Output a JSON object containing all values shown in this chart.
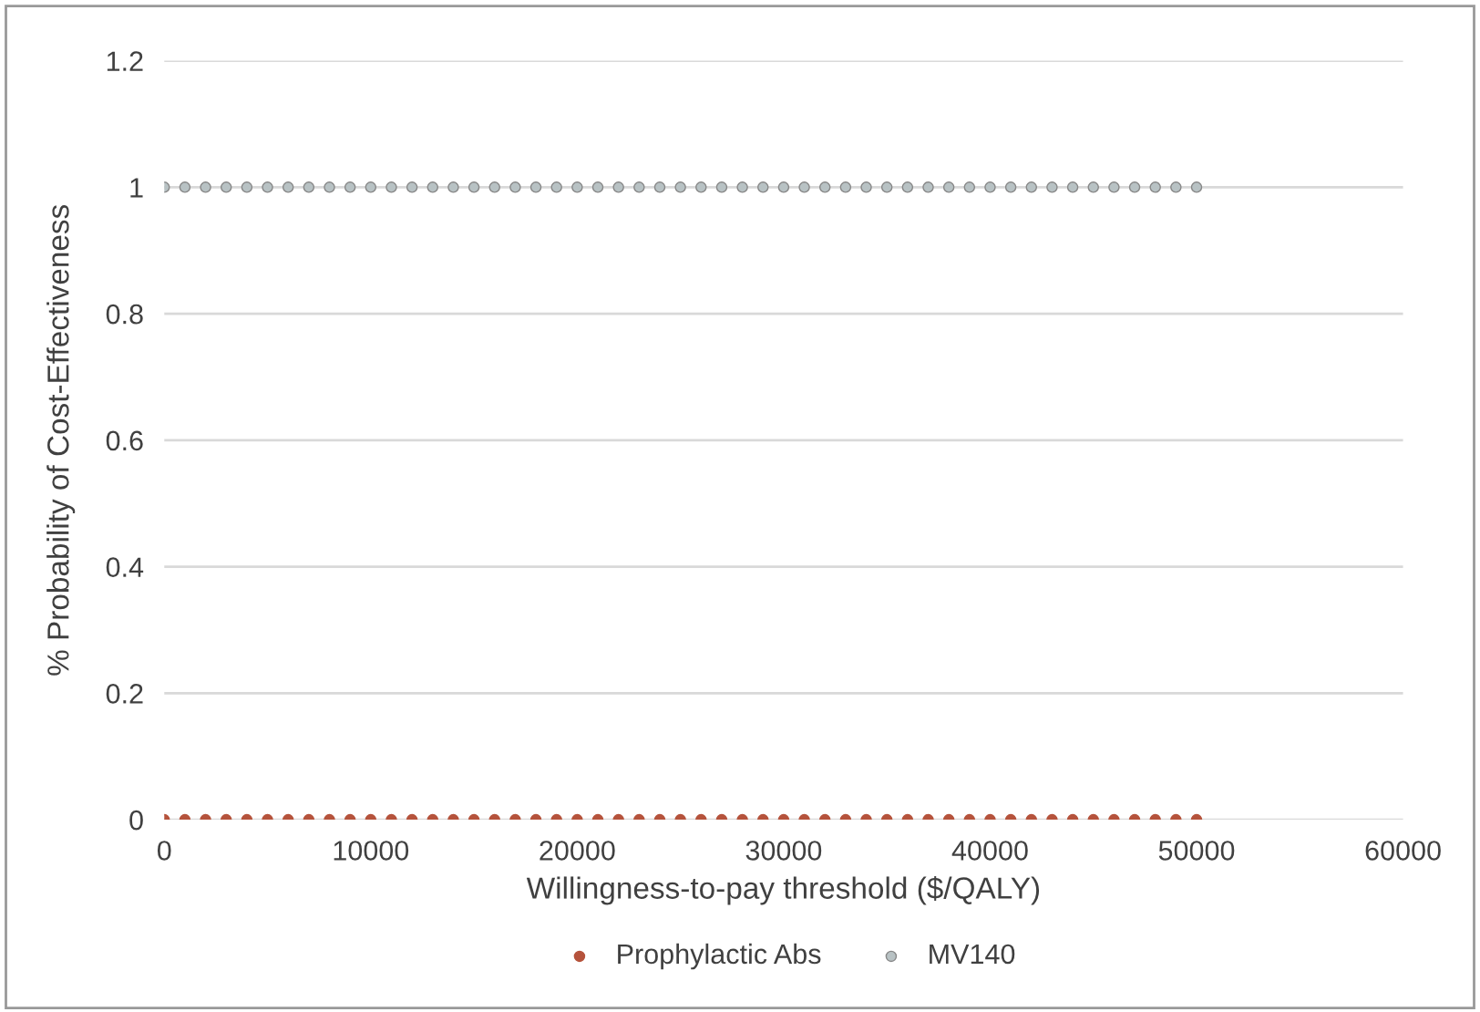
{
  "chart_data": {
    "type": "scatter",
    "xlabel": "Willingness-to-pay threshold ($/QALY)",
    "ylabel": "% Probability of Cost-Effectiveness",
    "x": [
      0,
      1000,
      2000,
      3000,
      4000,
      5000,
      6000,
      7000,
      8000,
      9000,
      10000,
      11000,
      12000,
      13000,
      14000,
      15000,
      16000,
      17000,
      18000,
      19000,
      20000,
      21000,
      22000,
      23000,
      24000,
      25000,
      26000,
      27000,
      28000,
      29000,
      30000,
      31000,
      32000,
      33000,
      34000,
      35000,
      36000,
      37000,
      38000,
      39000,
      40000,
      41000,
      42000,
      43000,
      44000,
      45000,
      46000,
      47000,
      48000,
      49000,
      50000
    ],
    "series": [
      {
        "name": "Prophylactic Abs",
        "color": "#b5533c",
        "values": [
          0,
          0,
          0,
          0,
          0,
          0,
          0,
          0,
          0,
          0,
          0,
          0,
          0,
          0,
          0,
          0,
          0,
          0,
          0,
          0,
          0,
          0,
          0,
          0,
          0,
          0,
          0,
          0,
          0,
          0,
          0,
          0,
          0,
          0,
          0,
          0,
          0,
          0,
          0,
          0,
          0,
          0,
          0,
          0,
          0,
          0,
          0,
          0,
          0,
          0,
          0
        ]
      },
      {
        "name": "MV140",
        "color": "#b8c2c4",
        "values": [
          1,
          1,
          1,
          1,
          1,
          1,
          1,
          1,
          1,
          1,
          1,
          1,
          1,
          1,
          1,
          1,
          1,
          1,
          1,
          1,
          1,
          1,
          1,
          1,
          1,
          1,
          1,
          1,
          1,
          1,
          1,
          1,
          1,
          1,
          1,
          1,
          1,
          1,
          1,
          1,
          1,
          1,
          1,
          1,
          1,
          1,
          1,
          1,
          1,
          1,
          1
        ]
      }
    ],
    "xlim": [
      0,
      60000
    ],
    "xticks": [
      0,
      10000,
      20000,
      30000,
      40000,
      50000,
      60000
    ],
    "ylim": [
      0,
      1.2
    ],
    "yticks": [
      0,
      0.2,
      0.4,
      0.6,
      0.8,
      1,
      1.2
    ],
    "grid": "y",
    "legend": "bottom",
    "marker": "circle"
  }
}
